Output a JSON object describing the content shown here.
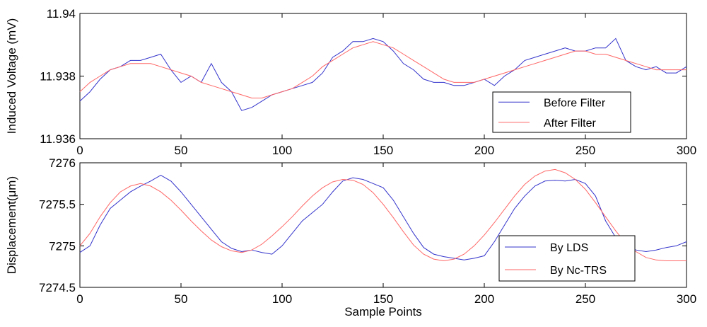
{
  "chart_data": [
    {
      "type": "line",
      "ylabel": "Induced Voltage (mV)",
      "xlabel": "",
      "xlim": [
        0,
        300
      ],
      "ylim": [
        11.936,
        11.94
      ],
      "xticks": [
        0,
        50,
        100,
        150,
        200,
        250,
        300
      ],
      "xtick_labels": [
        "0",
        "50",
        "100",
        "150",
        "200",
        "250",
        "300"
      ],
      "yticks": [
        11.936,
        11.938,
        11.94
      ],
      "ytick_labels": [
        "11.936",
        "11.938",
        "11.94"
      ],
      "legend": "bottom-right",
      "grid": false,
      "series": [
        {
          "name": "Before Filter",
          "color": "#3333cc",
          "x": [
            0,
            5,
            10,
            15,
            20,
            25,
            30,
            35,
            40,
            45,
            50,
            55,
            60,
            65,
            70,
            75,
            80,
            85,
            90,
            95,
            100,
            105,
            110,
            115,
            120,
            125,
            130,
            135,
            140,
            145,
            150,
            155,
            160,
            165,
            170,
            175,
            180,
            185,
            190,
            195,
            200,
            205,
            210,
            215,
            220,
            225,
            230,
            235,
            240,
            245,
            250,
            255,
            260,
            265,
            270,
            275,
            280,
            285,
            290,
            295,
            300
          ],
          "y": [
            11.9372,
            11.9375,
            11.9379,
            11.9382,
            11.9383,
            11.9385,
            11.9385,
            11.9386,
            11.9387,
            11.9382,
            11.9378,
            11.938,
            11.9378,
            11.9384,
            11.9378,
            11.9375,
            11.9369,
            11.937,
            11.9372,
            11.9374,
            11.9375,
            11.9376,
            11.9377,
            11.9378,
            11.9381,
            11.9386,
            11.9388,
            11.9391,
            11.9391,
            11.9392,
            11.9391,
            11.9388,
            11.9384,
            11.9382,
            11.9379,
            11.9378,
            11.9378,
            11.9377,
            11.9377,
            11.9378,
            11.9379,
            11.9377,
            11.938,
            11.9382,
            11.9385,
            11.9386,
            11.9387,
            11.9388,
            11.9389,
            11.9388,
            11.9388,
            11.9389,
            11.9389,
            11.9392,
            11.9385,
            11.9383,
            11.9382,
            11.9383,
            11.9381,
            11.9381,
            11.9383
          ]
        },
        {
          "name": "After Filter",
          "color": "#ff6666",
          "x": [
            0,
            5,
            10,
            15,
            20,
            25,
            30,
            35,
            40,
            45,
            50,
            55,
            60,
            65,
            70,
            75,
            80,
            85,
            90,
            95,
            100,
            105,
            110,
            115,
            120,
            125,
            130,
            135,
            140,
            145,
            150,
            155,
            160,
            165,
            170,
            175,
            180,
            185,
            190,
            195,
            200,
            205,
            210,
            215,
            220,
            225,
            230,
            235,
            240,
            245,
            250,
            255,
            260,
            265,
            270,
            275,
            280,
            285,
            290,
            295,
            300
          ],
          "y": [
            11.9375,
            11.9378,
            11.938,
            11.9382,
            11.9383,
            11.9384,
            11.9384,
            11.9384,
            11.9383,
            11.9382,
            11.9381,
            11.938,
            11.9378,
            11.9377,
            11.9376,
            11.9375,
            11.9374,
            11.9373,
            11.9373,
            11.9374,
            11.9375,
            11.9376,
            11.9378,
            11.938,
            11.9383,
            11.9385,
            11.9387,
            11.9389,
            11.939,
            11.9391,
            11.939,
            11.9389,
            11.9387,
            11.9385,
            11.9383,
            11.9381,
            11.9379,
            11.9378,
            11.9378,
            11.9378,
            11.9379,
            11.938,
            11.9381,
            11.9382,
            11.9383,
            11.9384,
            11.9385,
            11.9386,
            11.9387,
            11.9388,
            11.9388,
            11.9387,
            11.9387,
            11.9386,
            11.9385,
            11.9384,
            11.9383,
            11.9382,
            11.9382,
            11.9382,
            11.9382
          ]
        }
      ]
    },
    {
      "type": "line",
      "ylabel": "Displacement(μm)",
      "xlabel": "Sample Points",
      "xlim": [
        0,
        300
      ],
      "ylim": [
        7274.5,
        7276
      ],
      "xticks": [
        0,
        50,
        100,
        150,
        200,
        250,
        300
      ],
      "xtick_labels": [
        "0",
        "50",
        "100",
        "150",
        "200",
        "250",
        "300"
      ],
      "yticks": [
        7274.5,
        7275,
        7275.5,
        7276
      ],
      "ytick_labels": [
        "7274.5",
        "7275",
        "7275.5",
        "7276"
      ],
      "legend": "bottom-right",
      "grid": false,
      "series": [
        {
          "name": "By LDS",
          "color": "#3333cc",
          "x": [
            0,
            5,
            10,
            15,
            20,
            25,
            30,
            35,
            40,
            45,
            50,
            55,
            60,
            65,
            70,
            75,
            80,
            85,
            90,
            95,
            100,
            105,
            110,
            115,
            120,
            125,
            130,
            135,
            140,
            145,
            150,
            155,
            160,
            165,
            170,
            175,
            180,
            185,
            190,
            195,
            200,
            205,
            210,
            215,
            220,
            225,
            230,
            235,
            240,
            245,
            250,
            255,
            260,
            265,
            270,
            275,
            280,
            285,
            290,
            295,
            300
          ],
          "y": [
            7274.92,
            7275.0,
            7275.25,
            7275.45,
            7275.55,
            7275.65,
            7275.72,
            7275.78,
            7275.85,
            7275.78,
            7275.65,
            7275.5,
            7275.35,
            7275.2,
            7275.05,
            7274.97,
            7274.93,
            7274.95,
            7274.92,
            7274.9,
            7275.0,
            7275.15,
            7275.3,
            7275.4,
            7275.5,
            7275.65,
            7275.78,
            7275.82,
            7275.8,
            7275.75,
            7275.7,
            7275.55,
            7275.35,
            7275.15,
            7274.98,
            7274.9,
            7274.87,
            7274.85,
            7274.83,
            7274.85,
            7274.88,
            7275.05,
            7275.25,
            7275.45,
            7275.6,
            7275.72,
            7275.78,
            7275.79,
            7275.78,
            7275.8,
            7275.75,
            7275.6,
            7275.3,
            7275.1,
            7275.0,
            7274.95,
            7274.93,
            7274.95,
            7274.98,
            7275.0,
            7275.05
          ]
        },
        {
          "name": "By Nc-TRS",
          "color": "#ff6666",
          "x": [
            0,
            5,
            10,
            15,
            20,
            25,
            30,
            35,
            40,
            45,
            50,
            55,
            60,
            65,
            70,
            75,
            80,
            85,
            90,
            95,
            100,
            105,
            110,
            115,
            120,
            125,
            130,
            135,
            140,
            145,
            150,
            155,
            160,
            165,
            170,
            175,
            180,
            185,
            190,
            195,
            200,
            205,
            210,
            215,
            220,
            225,
            230,
            235,
            240,
            245,
            250,
            255,
            260,
            265,
            270,
            275,
            280,
            285,
            290,
            295,
            300
          ],
          "y": [
            7275.0,
            7275.15,
            7275.35,
            7275.52,
            7275.65,
            7275.72,
            7275.75,
            7275.72,
            7275.65,
            7275.55,
            7275.43,
            7275.3,
            7275.18,
            7275.07,
            7274.99,
            7274.94,
            7274.92,
            7274.95,
            7275.02,
            7275.12,
            7275.23,
            7275.35,
            7275.48,
            7275.6,
            7275.7,
            7275.77,
            7275.8,
            7275.79,
            7275.74,
            7275.64,
            7275.5,
            7275.34,
            7275.17,
            7275.01,
            7274.9,
            7274.84,
            7274.82,
            7274.84,
            7274.9,
            7275.0,
            7275.13,
            7275.28,
            7275.44,
            7275.6,
            7275.74,
            7275.84,
            7275.9,
            7275.92,
            7275.88,
            7275.8,
            7275.68,
            7275.52,
            7275.35,
            7275.18,
            7275.03,
            7274.93,
            7274.86,
            7274.83,
            7274.82,
            7274.82,
            7274.82
          ]
        }
      ]
    }
  ]
}
